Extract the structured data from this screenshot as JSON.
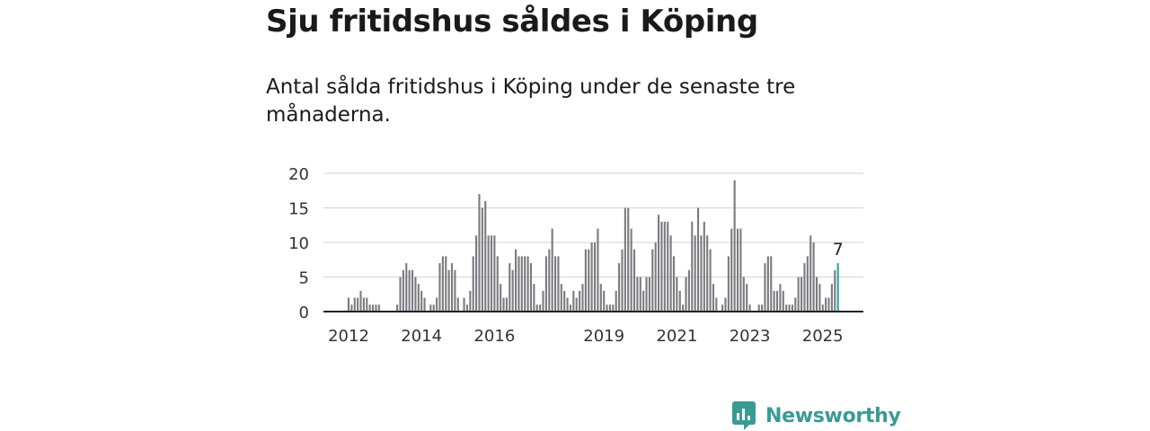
{
  "header": {
    "title": "Sju fritidshus såldes i Köping",
    "subtitle": "Antal sålda fritidshus i Köping under de senaste tre månaderna."
  },
  "brand": {
    "name": "Newsworthy",
    "color": "#3a9a94"
  },
  "colors": {
    "bar": "#7a7a80",
    "highlight": "#2aa59c",
    "grid": "#d9d9d9",
    "axis": "#222222"
  },
  "chart_data": {
    "type": "bar",
    "ylim": [
      0,
      20
    ],
    "yticks": [
      0,
      5,
      10,
      15,
      20
    ],
    "xtick_labels": [
      "2012",
      "2014",
      "2016",
      "2019",
      "2021",
      "2023",
      "2025"
    ],
    "x_start": "2012-01",
    "values": [
      2,
      1,
      2,
      2,
      3,
      2,
      2,
      1,
      1,
      1,
      1,
      0,
      0,
      0,
      0,
      0,
      1,
      5,
      6,
      7,
      6,
      6,
      5,
      4,
      3,
      2,
      0,
      1,
      1,
      2,
      7,
      8,
      8,
      6,
      7,
      6,
      2,
      0,
      2,
      1,
      3,
      8,
      11,
      17,
      15,
      16,
      11,
      11,
      11,
      8,
      4,
      2,
      2,
      7,
      6,
      9,
      8,
      8,
      8,
      8,
      7,
      4,
      1,
      1,
      3,
      8,
      9,
      12,
      8,
      8,
      4,
      3,
      2,
      1,
      3,
      2,
      3,
      4,
      9,
      9,
      10,
      10,
      12,
      4,
      3,
      1,
      1,
      1,
      3,
      7,
      9,
      15,
      15,
      12,
      9,
      5,
      5,
      3,
      5,
      5,
      9,
      10,
      14,
      13,
      13,
      13,
      11,
      8,
      5,
      3,
      1,
      5,
      6,
      13,
      11,
      15,
      11,
      13,
      11,
      9,
      4,
      2,
      0,
      1,
      2,
      8,
      12,
      19,
      12,
      12,
      5,
      4,
      1,
      0,
      0,
      1,
      1,
      7,
      8,
      8,
      3,
      3,
      4,
      3,
      1,
      1,
      1,
      2,
      5,
      5,
      7,
      8,
      11,
      10,
      5,
      4,
      1,
      2,
      2,
      4,
      6,
      7
    ],
    "highlight_label": "7"
  }
}
